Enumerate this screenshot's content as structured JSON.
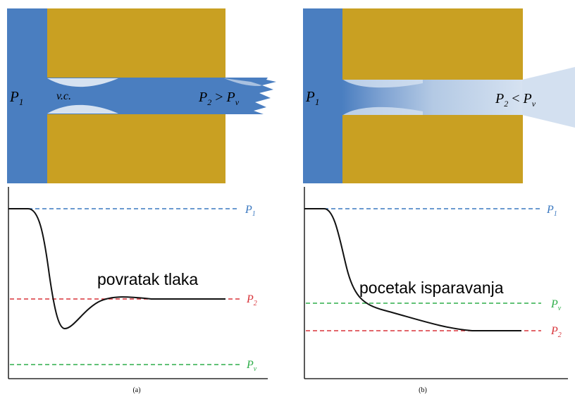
{
  "panels": {
    "a": {
      "caption": "(a)",
      "labels": {
        "p1": {
          "base": "P",
          "sub": "1"
        },
        "vc": "v.c.",
        "p2_cond": {
          "base": "P",
          "sub": "2",
          "op": " > ",
          "base2": "P",
          "sub2": "v"
        }
      },
      "graph": {
        "annotation": "povratak tlaka",
        "lines": {
          "p1": {
            "base": "P",
            "sub": "1"
          },
          "p2": {
            "base": "P",
            "sub": "2"
          },
          "pv": {
            "base": "P",
            "sub": "v"
          }
        }
      }
    },
    "b": {
      "caption": "(b)",
      "labels": {
        "p1": {
          "base": "P",
          "sub": "1"
        },
        "p2_cond": {
          "base": "P",
          "sub": "2",
          "op": " < ",
          "base2": "P",
          "sub2": "v"
        }
      },
      "graph": {
        "annotation": "pocetak isparavanja",
        "lines": {
          "p1": {
            "base": "P",
            "sub": "1"
          },
          "pv": {
            "base": "P",
            "sub": "v"
          },
          "p2": {
            "base": "P",
            "sub": "2"
          }
        }
      }
    }
  },
  "colors": {
    "fluid": "#4a7ec0",
    "body": "#c9a022",
    "vapor": "#b8cde6",
    "line_p1": "#3a78c0",
    "line_p2": "#d8343a",
    "line_pv": "#2fae4a"
  }
}
